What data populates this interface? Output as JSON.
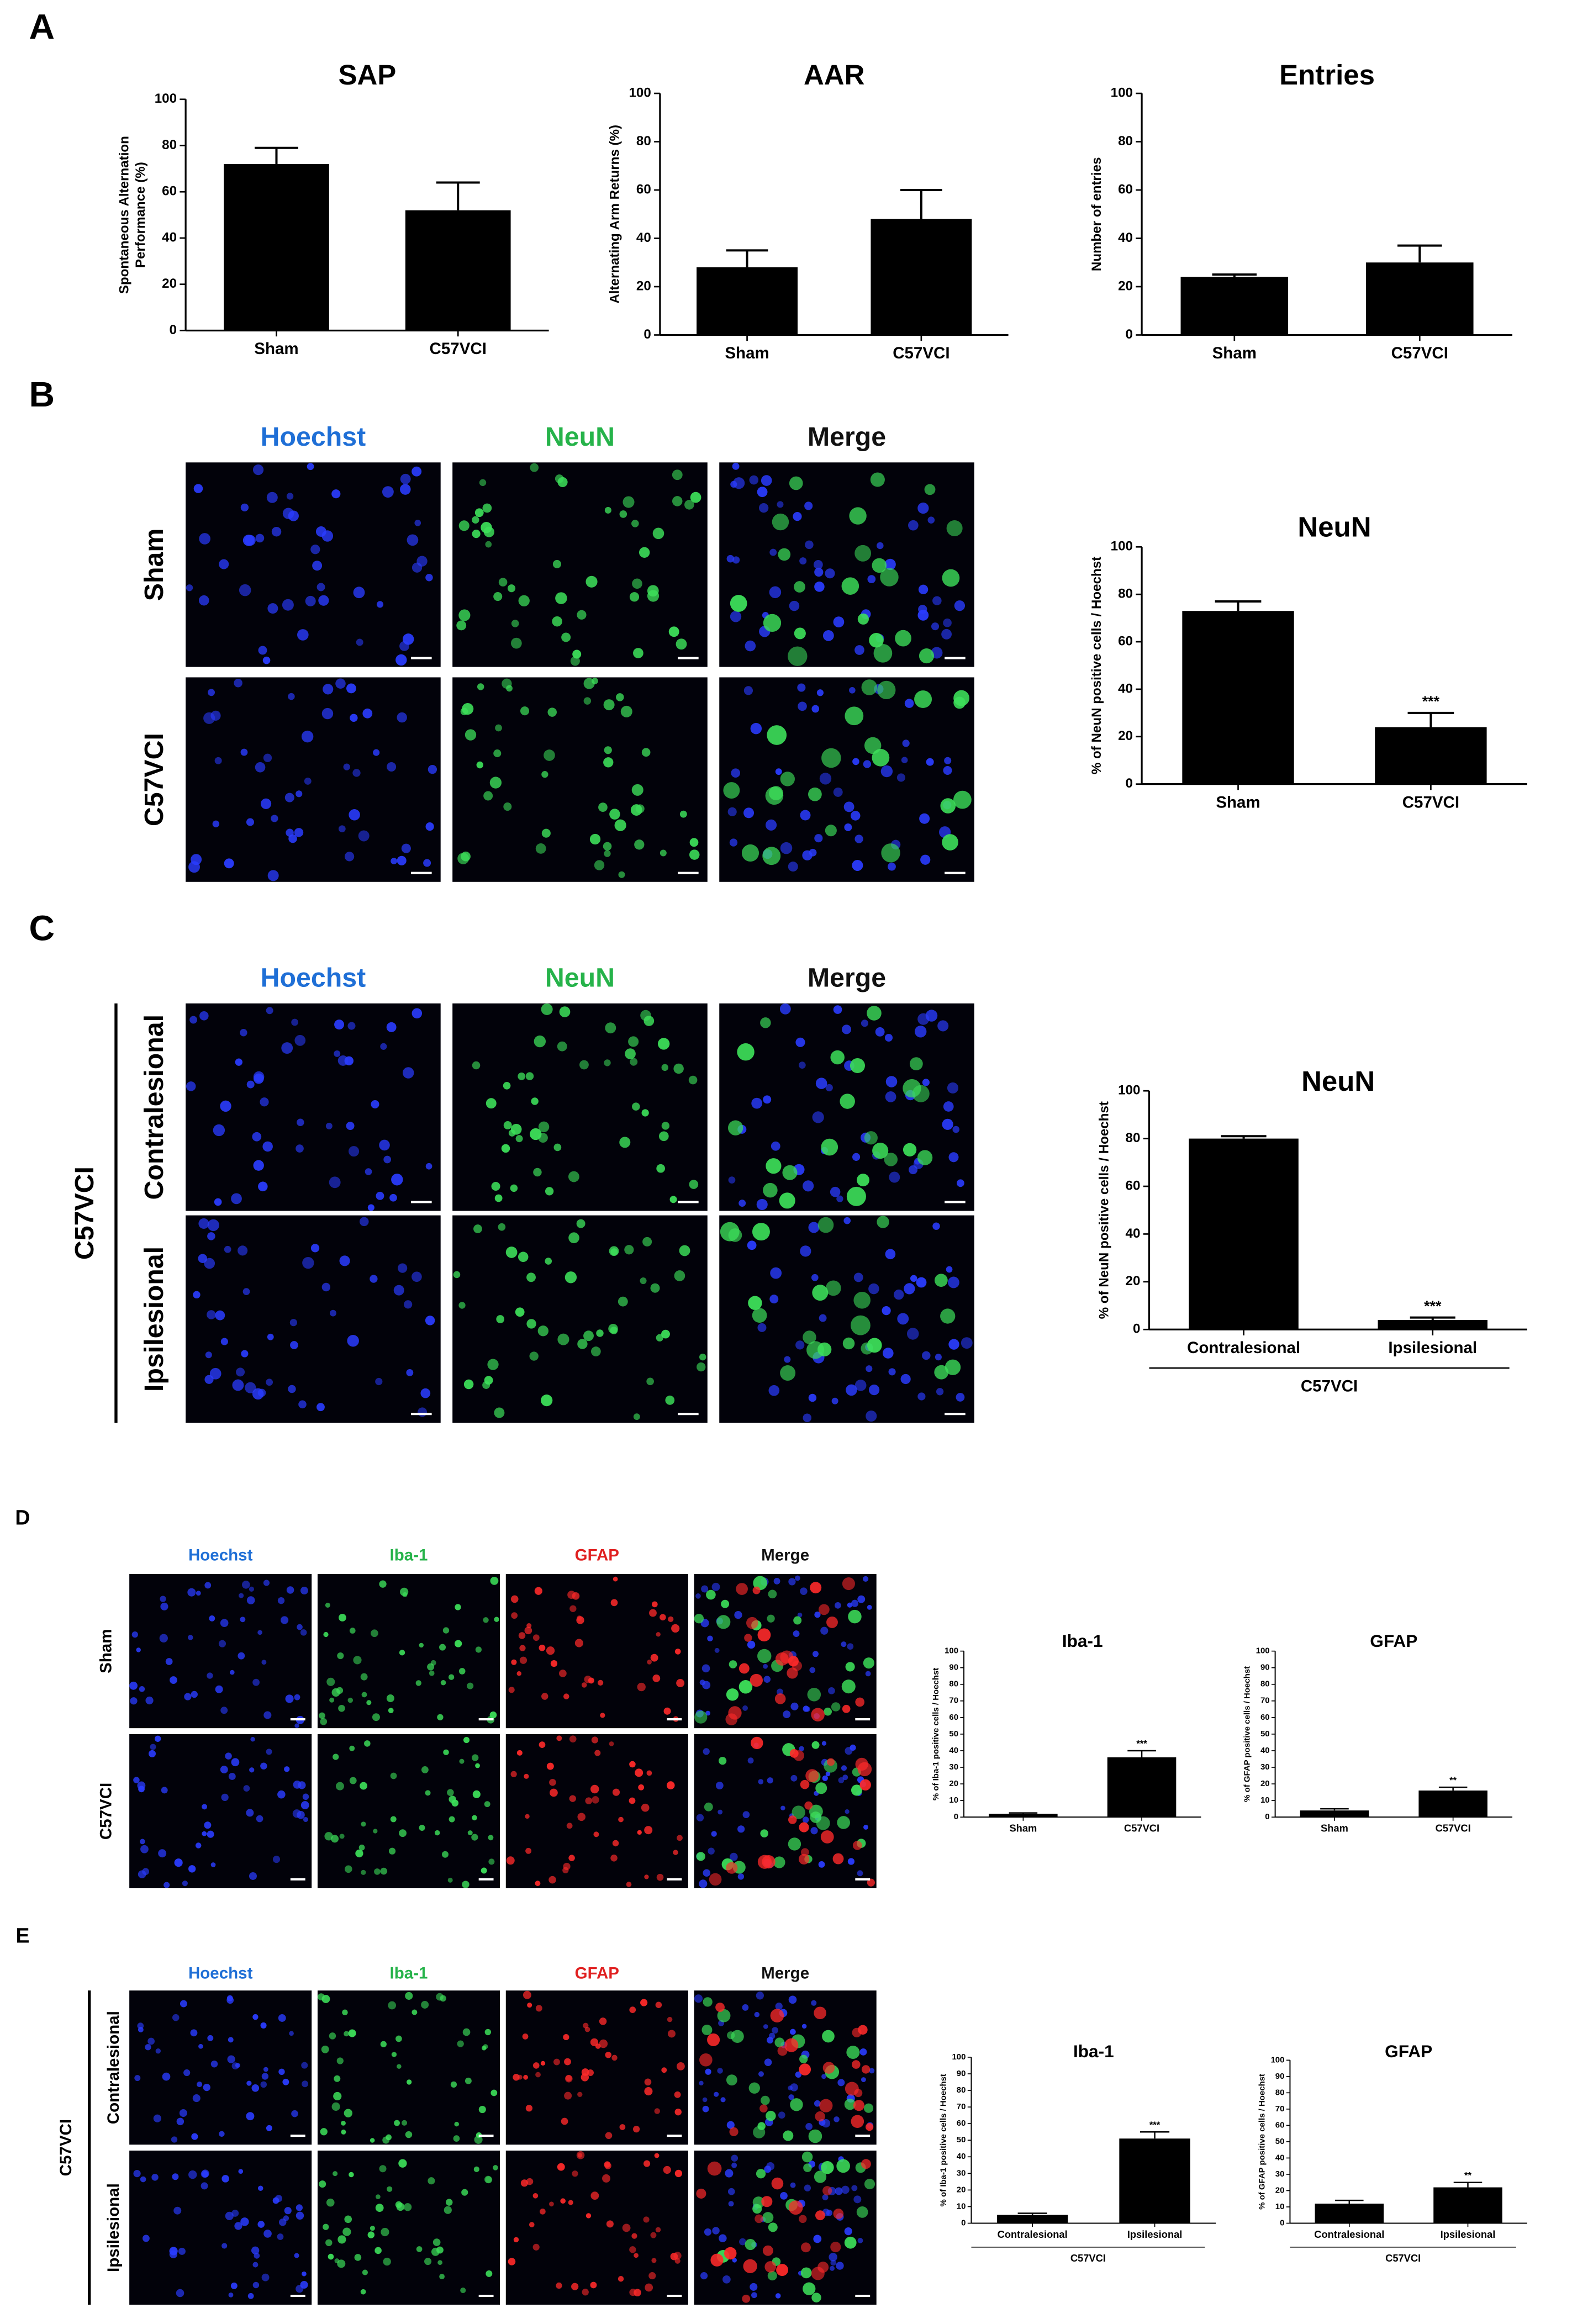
{
  "panel_labels": [
    "A",
    "B",
    "C",
    "D",
    "E"
  ],
  "image_grids": [
    {
      "columns": [
        "Hoechst",
        "NeuN",
        "Merge"
      ],
      "column_colors": [
        "#1f6fd6",
        "#26b34a",
        "#111111"
      ],
      "rows": [
        "Sham",
        "C57VCI"
      ]
    },
    {
      "columns": [
        "Hoechst",
        "NeuN",
        "Merge"
      ],
      "column_colors": [
        "#1f6fd6",
        "#26b34a",
        "#111111"
      ],
      "rows": [
        "Contralesional",
        "Ipsilesional"
      ],
      "group": "C57VCI"
    },
    {
      "columns": [
        "Hoechst",
        "Iba-1",
        "GFAP",
        "Merge"
      ],
      "column_colors": [
        "#1f6fd6",
        "#26b34a",
        "#e02020",
        "#111111"
      ],
      "rows": [
        "Sham",
        "C57VCI"
      ]
    },
    {
      "columns": [
        "Hoechst",
        "Iba-1",
        "GFAP",
        "Merge"
      ],
      "column_colors": [
        "#1f6fd6",
        "#26b34a",
        "#e02020",
        "#111111"
      ],
      "rows": [
        "Contralesional",
        "Ipsilesional"
      ],
      "group": "C57VCI"
    }
  ],
  "chart_data": [
    {
      "type": "bar",
      "title": "SAP",
      "ylabel": [
        "Spontaneous Alternation",
        "Performance (%)"
      ],
      "categories": [
        "Sham",
        "C57VCI"
      ],
      "values": [
        72,
        52
      ],
      "errors": [
        7,
        12
      ],
      "color": "#000000",
      "ylim": [
        0,
        100
      ],
      "yticks": [
        0,
        20,
        40,
        60,
        80,
        100
      ]
    },
    {
      "type": "bar",
      "title": "AAR",
      "ylabel": [
        "Alternating Arm Returns (%)"
      ],
      "categories": [
        "Sham",
        "C57VCI"
      ],
      "values": [
        28,
        48
      ],
      "errors": [
        7,
        12
      ],
      "color": "#000000",
      "ylim": [
        0,
        100
      ],
      "yticks": [
        0,
        20,
        40,
        60,
        80,
        100
      ]
    },
    {
      "type": "bar",
      "title": "Entries",
      "ylabel": [
        "Number of entries"
      ],
      "categories": [
        "Sham",
        "C57VCI"
      ],
      "values": [
        24,
        30
      ],
      "errors": [
        1,
        7
      ],
      "color": "#000000",
      "ylim": [
        0,
        100
      ],
      "yticks": [
        0,
        20,
        40,
        60,
        80,
        100
      ]
    },
    {
      "type": "bar",
      "title": "NeuN",
      "ylabel": [
        "% of NeuN positive cells / Hoechst"
      ],
      "categories": [
        "Sham",
        "C57VCI"
      ],
      "values": [
        73,
        24
      ],
      "errors": [
        4,
        6
      ],
      "significance": [
        null,
        "***"
      ],
      "color": "#000000",
      "ylim": [
        0,
        100
      ],
      "yticks": [
        0,
        20,
        40,
        60,
        80,
        100
      ]
    },
    {
      "type": "bar",
      "title": "NeuN",
      "ylabel": [
        "% of NeuN positive cells / Hoechst"
      ],
      "categories": [
        "Contralesional",
        "Ipsilesional"
      ],
      "values": [
        80,
        4
      ],
      "errors": [
        1,
        1
      ],
      "significance": [
        null,
        "***"
      ],
      "group": "C57VCI",
      "color": "#000000",
      "ylim": [
        0,
        100
      ],
      "yticks": [
        0,
        20,
        40,
        60,
        80,
        100
      ]
    },
    {
      "type": "bar",
      "title": "Iba-1",
      "ylabel": [
        "% of Iba-1 positive cells / Hoechst"
      ],
      "categories": [
        "Sham",
        "C57VCI"
      ],
      "values": [
        2,
        36
      ],
      "errors": [
        0.5,
        4
      ],
      "significance": [
        null,
        "***"
      ],
      "color": "#000000",
      "ylim": [
        0,
        100
      ],
      "yticks": [
        0,
        10,
        20,
        30,
        40,
        50,
        60,
        70,
        80,
        90,
        100
      ]
    },
    {
      "type": "bar",
      "title": "GFAP",
      "ylabel": [
        "% of GFAP positive cells / Hoechst"
      ],
      "categories": [
        "Sham",
        "C57VCI"
      ],
      "values": [
        4,
        16
      ],
      "errors": [
        1,
        2
      ],
      "significance": [
        null,
        "**"
      ],
      "color": "#000000",
      "ylim": [
        0,
        100
      ],
      "yticks": [
        0,
        10,
        20,
        30,
        40,
        50,
        60,
        70,
        80,
        90,
        100
      ]
    },
    {
      "type": "bar",
      "title": "Iba-1",
      "ylabel": [
        "% of Iba-1 positive cells / Hoechst"
      ],
      "categories": [
        "Contralesional",
        "Ipsilesional"
      ],
      "values": [
        5,
        51
      ],
      "errors": [
        1,
        4
      ],
      "significance": [
        null,
        "***"
      ],
      "group": "C57VCI",
      "color": "#000000",
      "ylim": [
        0,
        100
      ],
      "yticks": [
        0,
        10,
        20,
        30,
        40,
        50,
        60,
        70,
        80,
        90,
        100
      ]
    },
    {
      "type": "bar",
      "title": "GFAP",
      "ylabel": [
        "% of GFAP positive cells / Hoechst"
      ],
      "categories": [
        "Contralesional",
        "Ipsilesional"
      ],
      "values": [
        12,
        22
      ],
      "errors": [
        2,
        3
      ],
      "significance": [
        null,
        "**"
      ],
      "group": "C57VCI",
      "color": "#000000",
      "ylim": [
        0,
        100
      ],
      "yticks": [
        0,
        10,
        20,
        30,
        40,
        50,
        60,
        70,
        80,
        90,
        100
      ]
    }
  ]
}
